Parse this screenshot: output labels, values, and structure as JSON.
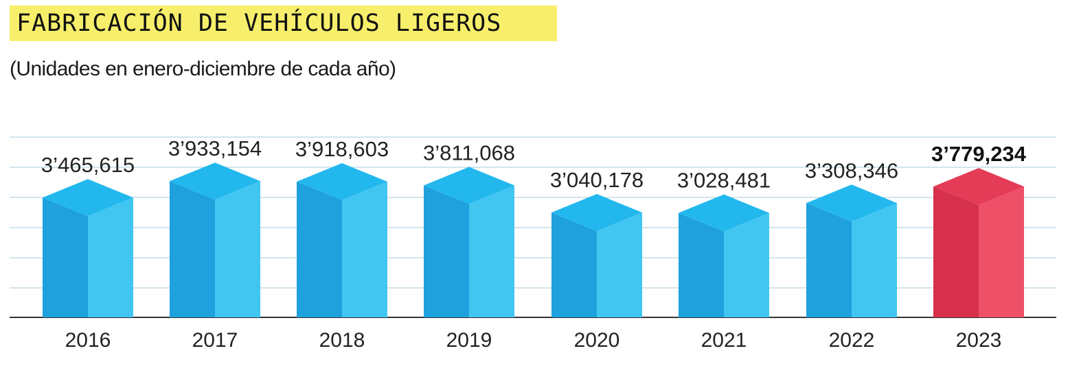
{
  "header": {
    "title": "FABRICACIÓN DE VEHÍCULOS LIGEROS",
    "subtitle": "(Unidades en enero-diciembre de cada año)"
  },
  "colors": {
    "title_background": "#f7ef6b",
    "bar_front": "#1ea1dd",
    "bar_side": "#41c6f1",
    "bar_top": "#22b8ee",
    "highlight_front": "#d6304c",
    "highlight_side": "#ee5068",
    "highlight_top": "#e43b57",
    "gridline": "#b9d3df",
    "baseline": "#333333"
  },
  "chart_data": {
    "type": "bar",
    "title": "FABRICACIÓN DE VEHÍCULOS LIGEROS",
    "subtitle": "(Unidades en enero-diciembre de cada año)",
    "xlabel": "",
    "ylabel": "",
    "categories": [
      "2016",
      "2017",
      "2018",
      "2019",
      "2020",
      "2021",
      "2022",
      "2023"
    ],
    "values": [
      3465615,
      3933154,
      3918603,
      3811068,
      3040178,
      3028481,
      3308346,
      3779234
    ],
    "value_labels": [
      "3’465,615",
      "3’933,154",
      "3’918,603",
      "3’811,068",
      "3’040,178",
      "3’028,481",
      "3’308,346",
      "3’779,234"
    ],
    "highlight_index": 7,
    "grid": true,
    "y_axis_visible": false,
    "style": "3d-isometric-boxes"
  }
}
